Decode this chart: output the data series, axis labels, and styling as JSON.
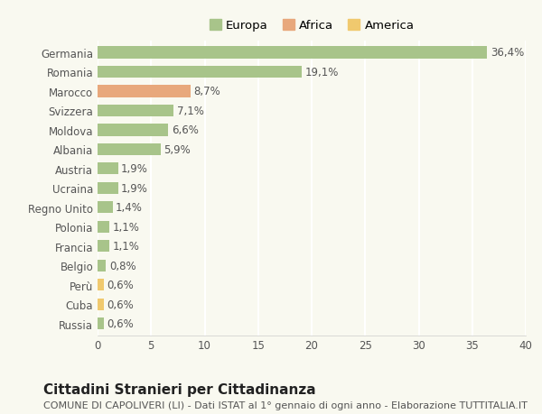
{
  "categories": [
    "Germania",
    "Romania",
    "Marocco",
    "Svizzera",
    "Moldova",
    "Albania",
    "Austria",
    "Ucraina",
    "Regno Unito",
    "Polonia",
    "Francia",
    "Belgio",
    "Perù",
    "Cuba",
    "Russia"
  ],
  "values": [
    36.4,
    19.1,
    8.7,
    7.1,
    6.6,
    5.9,
    1.9,
    1.9,
    1.4,
    1.1,
    1.1,
    0.8,
    0.6,
    0.6,
    0.6
  ],
  "labels": [
    "36,4%",
    "19,1%",
    "8,7%",
    "7,1%",
    "6,6%",
    "5,9%",
    "1,9%",
    "1,9%",
    "1,4%",
    "1,1%",
    "1,1%",
    "0,8%",
    "0,6%",
    "0,6%",
    "0,6%"
  ],
  "continents": [
    "Europa",
    "Europa",
    "Africa",
    "Europa",
    "Europa",
    "Europa",
    "Europa",
    "Europa",
    "Europa",
    "Europa",
    "Europa",
    "Europa",
    "America",
    "America",
    "Europa"
  ],
  "colors": {
    "Europa": "#a8c48a",
    "Africa": "#e8a87c",
    "America": "#f0c96e"
  },
  "legend_order": [
    "Europa",
    "Africa",
    "America"
  ],
  "xlim": [
    0,
    40
  ],
  "xticks": [
    0,
    5,
    10,
    15,
    20,
    25,
    30,
    35,
    40
  ],
  "title": "Cittadini Stranieri per Cittadinanza",
  "subtitle": "COMUNE DI CAPOLIVERI (LI) - Dati ISTAT al 1° gennaio di ogni anno - Elaborazione TUTTITALIA.IT",
  "background_color": "#f9f9f0",
  "grid_color": "#ffffff",
  "bar_height": 0.62,
  "title_fontsize": 11,
  "subtitle_fontsize": 8,
  "label_fontsize": 8.5,
  "tick_fontsize": 8.5,
  "legend_fontsize": 9.5
}
